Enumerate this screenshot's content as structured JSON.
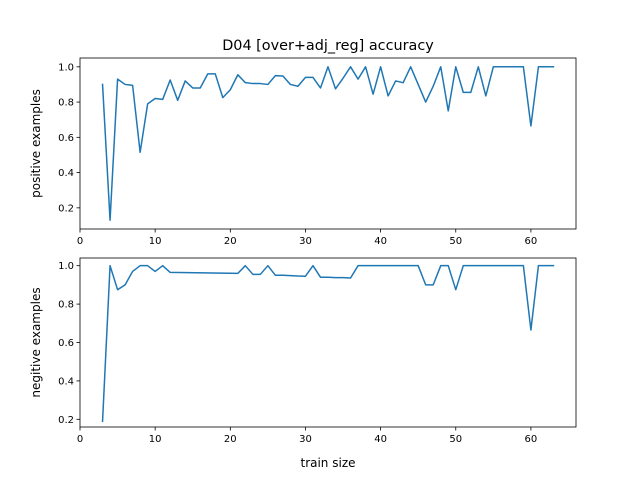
{
  "chart_data": {
    "type": "line",
    "title": "D04 [over+adj_reg] accuracy",
    "xlabel": "train size",
    "line_color": "#1f77b4",
    "grid": false,
    "legend": "none",
    "subplots": [
      {
        "ylabel": "positive examples",
        "xlim": [
          0,
          66
        ],
        "ylim": [
          0.08,
          1.05
        ],
        "xticks": [
          0,
          10,
          20,
          30,
          40,
          50,
          60
        ],
        "xtick_labels": [
          "0",
          "10",
          "20",
          "30",
          "40",
          "50",
          "60"
        ],
        "yticks": [
          0.2,
          0.4,
          0.6,
          0.8,
          1.0
        ],
        "ytick_labels": [
          "0.2",
          "0.4",
          "0.6",
          "0.8",
          "1.0"
        ],
        "x": [
          3,
          4,
          5,
          6,
          7,
          8,
          9,
          10,
          11,
          12,
          13,
          14,
          15,
          16,
          17,
          18,
          19,
          20,
          21,
          22,
          23,
          24,
          25,
          26,
          27,
          28,
          29,
          30,
          31,
          32,
          33,
          34,
          35,
          36,
          37,
          38,
          39,
          40,
          41,
          42,
          43,
          44,
          45,
          46,
          47,
          48,
          49,
          50,
          51,
          52,
          53,
          54,
          55,
          56,
          57,
          58,
          59,
          60,
          61,
          62,
          63
        ],
        "y": [
          0.9,
          0.13,
          0.93,
          0.9,
          0.895,
          0.515,
          0.79,
          0.82,
          0.815,
          0.925,
          0.81,
          0.92,
          0.88,
          0.88,
          0.96,
          0.96,
          0.825,
          0.87,
          0.955,
          0.91,
          0.905,
          0.905,
          0.9,
          0.95,
          0.948,
          0.9,
          0.89,
          0.94,
          0.94,
          0.88,
          1.0,
          0.875,
          0.935,
          1.0,
          0.93,
          1.0,
          0.845,
          1.0,
          0.835,
          0.92,
          0.91,
          1.0,
          0.9,
          0.8,
          0.89,
          1.0,
          0.75,
          1.0,
          0.855,
          0.855,
          1.0,
          0.835,
          1.0,
          1.0,
          1.0,
          1.0,
          1.0,
          0.665,
          1.0,
          1.0,
          1.0
        ]
      },
      {
        "ylabel": "negitive examples",
        "xlim": [
          0,
          66
        ],
        "ylim": [
          0.16,
          1.04
        ],
        "xticks": [
          0,
          10,
          20,
          30,
          40,
          50,
          60
        ],
        "xtick_labels": [
          "0",
          "10",
          "20",
          "30",
          "40",
          "50",
          "60"
        ],
        "yticks": [
          0.2,
          0.4,
          0.6,
          0.8,
          1.0
        ],
        "ytick_labels": [
          "0.2",
          "0.4",
          "0.6",
          "0.8",
          "1.0"
        ],
        "x": [
          3,
          4,
          5,
          6,
          7,
          8,
          9,
          10,
          11,
          12,
          21,
          22,
          23,
          24,
          25,
          26,
          27,
          28,
          29,
          30,
          31,
          32,
          33,
          34,
          35,
          36,
          37,
          38,
          39,
          40,
          41,
          42,
          43,
          44,
          45,
          46,
          47,
          48,
          49,
          50,
          51,
          52,
          53,
          54,
          55,
          56,
          57,
          58,
          59,
          60,
          61,
          62,
          63
        ],
        "y": [
          0.19,
          1.0,
          0.875,
          0.9,
          0.97,
          1.0,
          1.0,
          0.97,
          1.0,
          0.965,
          0.96,
          1.0,
          0.955,
          0.955,
          1.0,
          0.95,
          0.95,
          0.948,
          0.946,
          0.945,
          1.0,
          0.94,
          0.94,
          0.938,
          0.938,
          0.936,
          1.0,
          1.0,
          1.0,
          1.0,
          1.0,
          1.0,
          1.0,
          1.0,
          1.0,
          0.9,
          0.9,
          1.0,
          1.0,
          0.875,
          1.0,
          1.0,
          1.0,
          1.0,
          1.0,
          1.0,
          1.0,
          1.0,
          1.0,
          0.665,
          1.0,
          1.0,
          1.0
        ]
      }
    ]
  }
}
